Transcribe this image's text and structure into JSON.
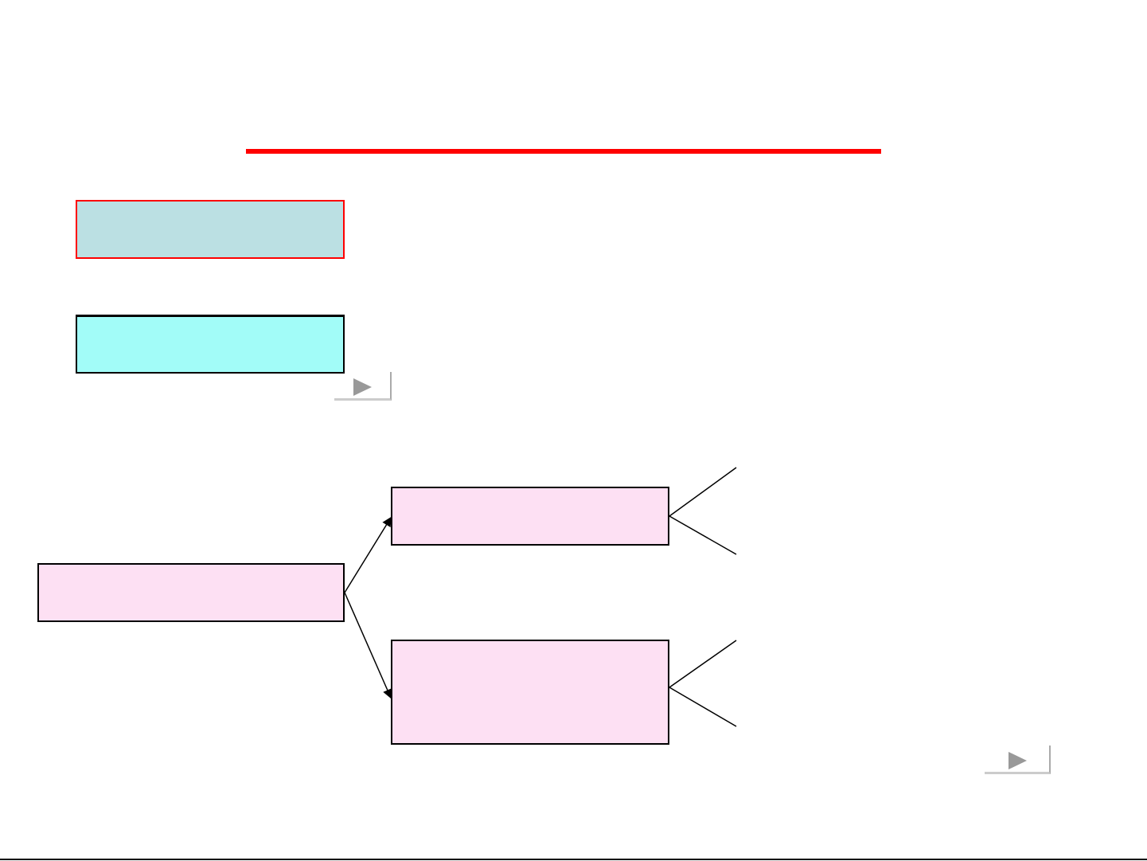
{
  "colors": {
    "title_rule": "#ff0000",
    "box1_fill": "#bbe0e3",
    "box1_border": "#ff0000",
    "box2_fill": "#a2fcf8",
    "node_fill": "#fde0f3",
    "line": "#000000",
    "nav_arrow": "#999999"
  },
  "icons": {
    "nav_next": "play-triangle-icon"
  }
}
